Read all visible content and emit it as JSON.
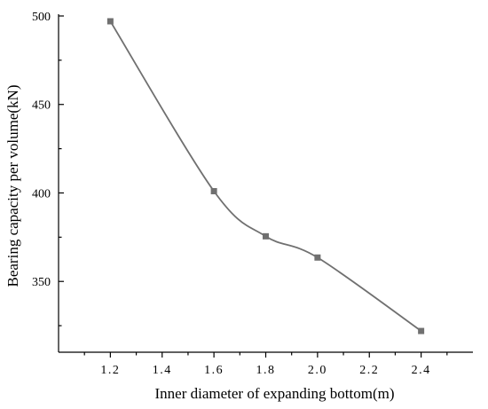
{
  "chart_data": {
    "type": "line",
    "xlabel": "Inner diameter of expanding bottom(m)",
    "ylabel": "Bearing capacity per volume(kN)",
    "xlim": [
      1.0,
      2.6
    ],
    "ylim": [
      310,
      500
    ],
    "x_ticks": [
      1.2,
      1.4,
      1.6,
      1.8,
      2.0,
      2.2,
      2.4
    ],
    "x_tick_labels": [
      "1.2",
      "1.4",
      "1.6",
      "1.8",
      "2.0",
      "2.2",
      "2.4"
    ],
    "y_ticks": [
      350,
      400,
      450,
      500
    ],
    "y_tick_labels": [
      "350",
      "400",
      "450",
      "500"
    ],
    "grid": false,
    "series": [
      {
        "x": [
          1.2,
          1.6,
          1.8,
          2.0,
          2.4
        ],
        "y": [
          497,
          401,
          375.5,
          363.5,
          322
        ],
        "color": "#707070",
        "marker": "square",
        "smooth": true
      }
    ]
  }
}
